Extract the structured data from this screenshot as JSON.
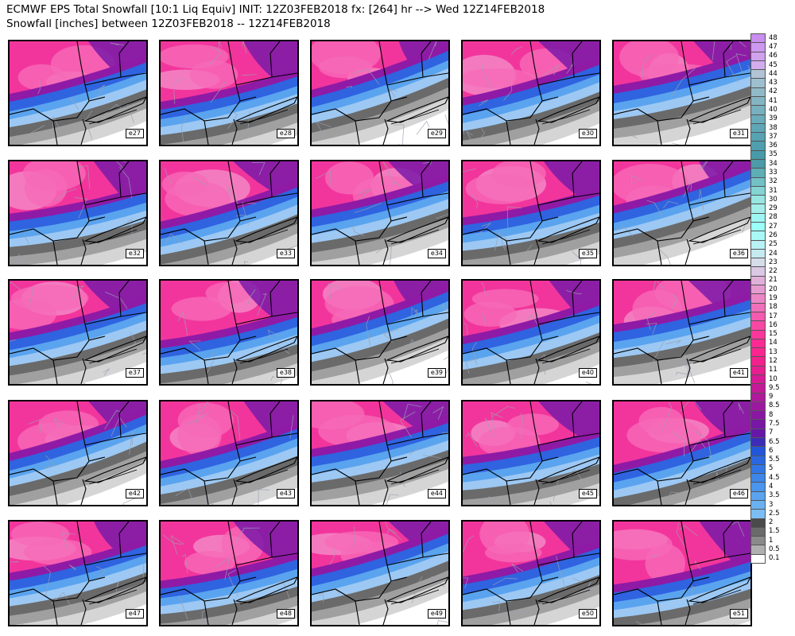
{
  "header": {
    "line1": "ECMWF EPS Total Snowfall [10:1 Liq Equiv] INIT: 12Z03FEB2018 fx: [264] hr --> Wed 12Z14FEB2018",
    "line2": "Snowfall [inches] between 12Z03FEB2018 -- 12Z14FEB2018"
  },
  "members": [
    "e27",
    "e28",
    "e29",
    "e30",
    "e31",
    "e32",
    "e33",
    "e34",
    "e35",
    "e36",
    "e37",
    "e38",
    "e39",
    "e40",
    "e41",
    "e42",
    "e43",
    "e44",
    "e45",
    "e46",
    "e47",
    "e48",
    "e49",
    "e50",
    "e51"
  ],
  "colorbar": {
    "labels": [
      "48",
      "47",
      "46",
      "45",
      "44",
      "43",
      "42",
      "41",
      "40",
      "39",
      "38",
      "37",
      "36",
      "35",
      "34",
      "33",
      "32",
      "31",
      "30",
      "29",
      "28",
      "27",
      "26",
      "25",
      "24",
      "23",
      "22",
      "21",
      "20",
      "19",
      "18",
      "17",
      "16",
      "15",
      "14",
      "13",
      "12",
      "11",
      "10",
      "9.5",
      "9",
      "8.5",
      "8",
      "7.5",
      "7",
      "6.5",
      "6",
      "5.5",
      "5",
      "4.5",
      "4",
      "3.5",
      "3",
      "2.5",
      "2",
      "1.5",
      "1",
      "0.5",
      "0.1"
    ],
    "colors": [
      "#c98ef0",
      "#cd98ef",
      "#d0a2ee",
      "#d3acee",
      "#b2c4d3",
      "#9ebfcd",
      "#91bac8",
      "#84b5c3",
      "#77b0bf",
      "#6aacba",
      "#5fa7b6",
      "#57a3b2",
      "#4f9fae",
      "#479aaa",
      "#4b9ba8",
      "#5eaeb6",
      "#71c1c5",
      "#84d4d4",
      "#97e6e2",
      "#a3eee9",
      "#9ef6f2",
      "#99fff8",
      "#a9f8f6",
      "#b8f2f4",
      "#c5eaf0",
      "#d4dde8",
      "#dac8e4",
      "#e0b0d9",
      "#e69bd0",
      "#ec86c5",
      "#f06fb9",
      "#f45aae",
      "#f748a4",
      "#f9379b",
      "#fb2a94",
      "#fc258f",
      "#f2218d",
      "#e61e90",
      "#d61b94",
      "#c41a98",
      "#b0199c",
      "#9c18a0",
      "#8a17a2",
      "#7717a4",
      "#6617a8",
      "#3c2cb8",
      "#2255d8",
      "#2a66e0",
      "#3276e6",
      "#3d86ea",
      "#4a95ed",
      "#5aa3ef",
      "#6ab1f1",
      "#7cbef3",
      "#4a4a4a",
      "#6a6a6a",
      "#8a8a8a",
      "#b0b0b0",
      "#ffffff"
    ]
  }
}
